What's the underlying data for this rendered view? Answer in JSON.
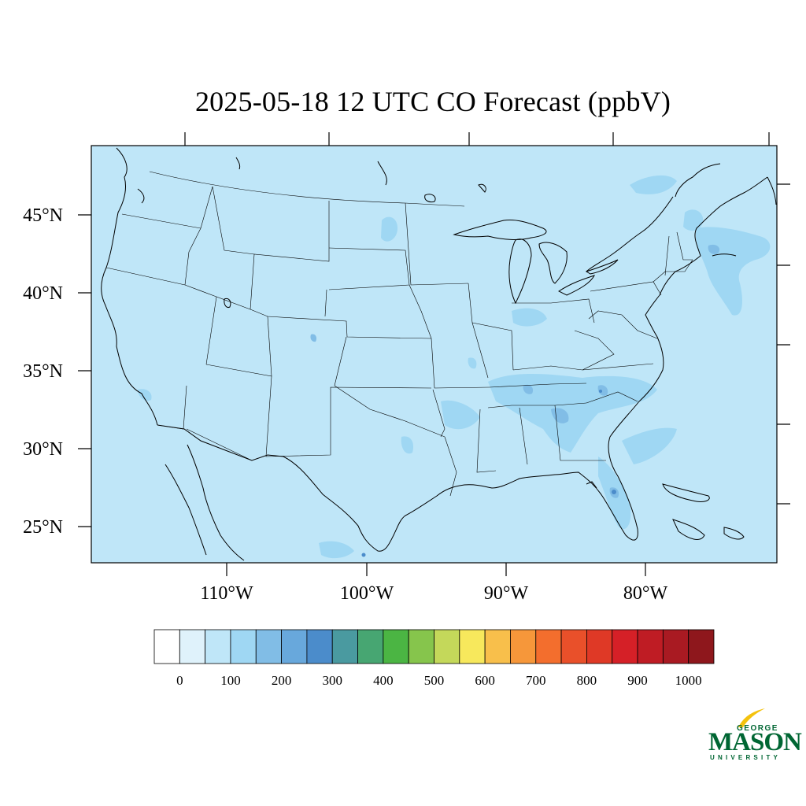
{
  "map": {
    "title": "2025-05-18 12 UTC CO Forecast (ppbV)",
    "background_color": "#bfe6f8",
    "lat_labels": [
      "45°N",
      "40°N",
      "35°N",
      "30°N",
      "25°N"
    ],
    "lon_labels": [
      "110°W",
      "100°W",
      "90°W",
      "80°W"
    ]
  },
  "colorbar": {
    "colors": [
      "#ffffff",
      "#dff2fb",
      "#bfe6f8",
      "#9fd7f3",
      "#81bde6",
      "#68a8dc",
      "#4b8ccb",
      "#4a9aa0",
      "#47a672",
      "#4bb543",
      "#86c54c",
      "#c4d85a",
      "#f7e85c",
      "#f8bf4b",
      "#f6973a",
      "#f36e2d",
      "#e9502a",
      "#df3926",
      "#d52027",
      "#bf1c24",
      "#a91a22",
      "#8e171c"
    ],
    "tick_labels": [
      "0",
      "100",
      "200",
      "300",
      "400",
      "500",
      "600",
      "700",
      "800",
      "900",
      "1000"
    ]
  },
  "logo": {
    "line1": "GEORGE",
    "line2": "MASON",
    "line3": "UNIVERSITY"
  }
}
